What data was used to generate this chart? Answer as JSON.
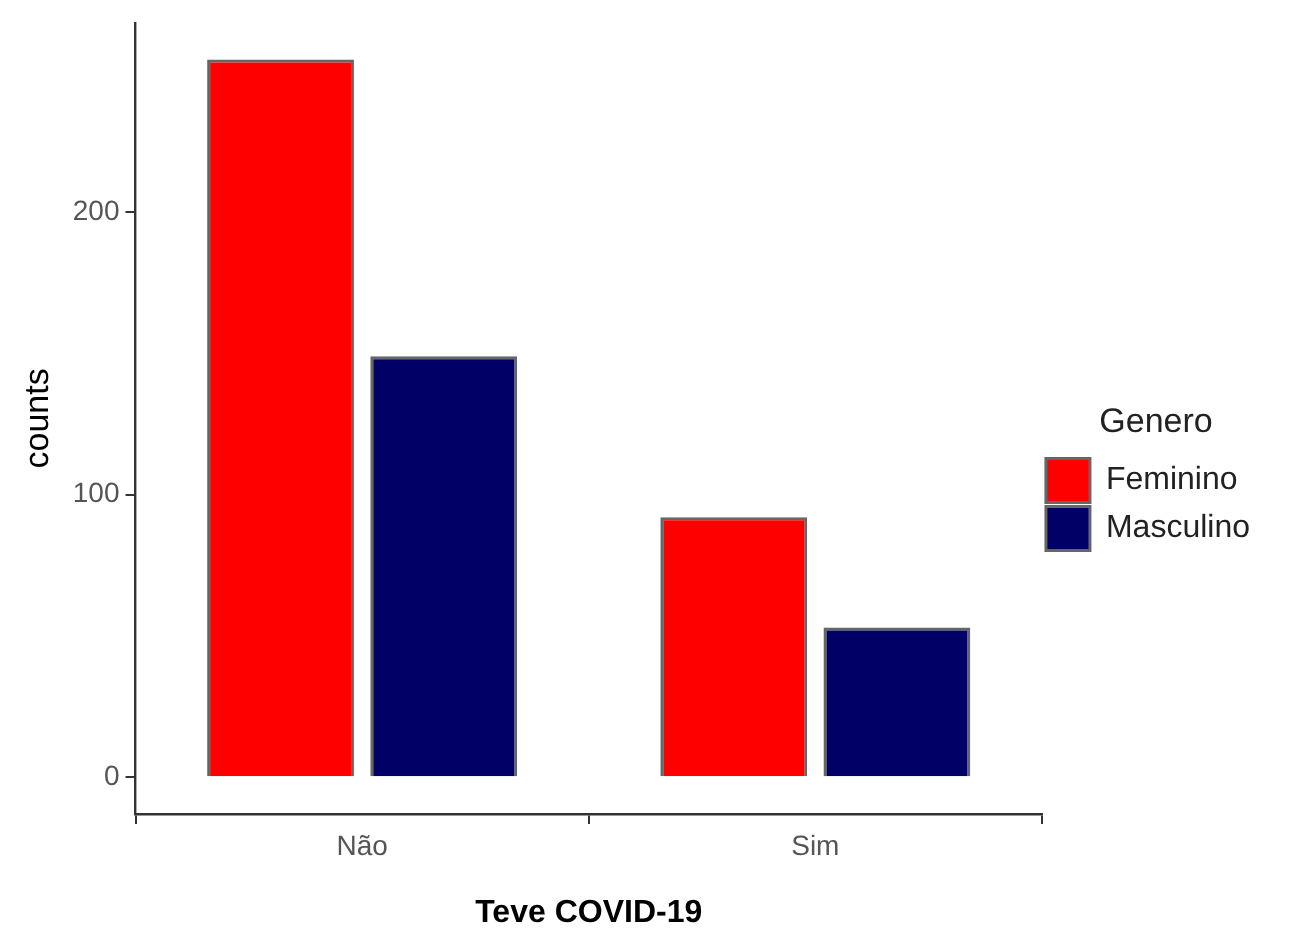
{
  "chart_data": {
    "type": "bar",
    "xlabel": "Teve COVID-19",
    "ylabel": "counts",
    "legend_title": "Genero",
    "categories": [
      "Não",
      "Sim"
    ],
    "series": [
      {
        "name": "Feminino",
        "color": "#ff0000",
        "values": [
          254,
          92
        ]
      },
      {
        "name": "Masculino",
        "color": "#000066",
        "values": [
          149,
          53
        ]
      }
    ],
    "ylim": [
      -13,
      267
    ],
    "yticks": [
      0,
      100,
      200
    ],
    "grid": false,
    "legend": "right"
  }
}
